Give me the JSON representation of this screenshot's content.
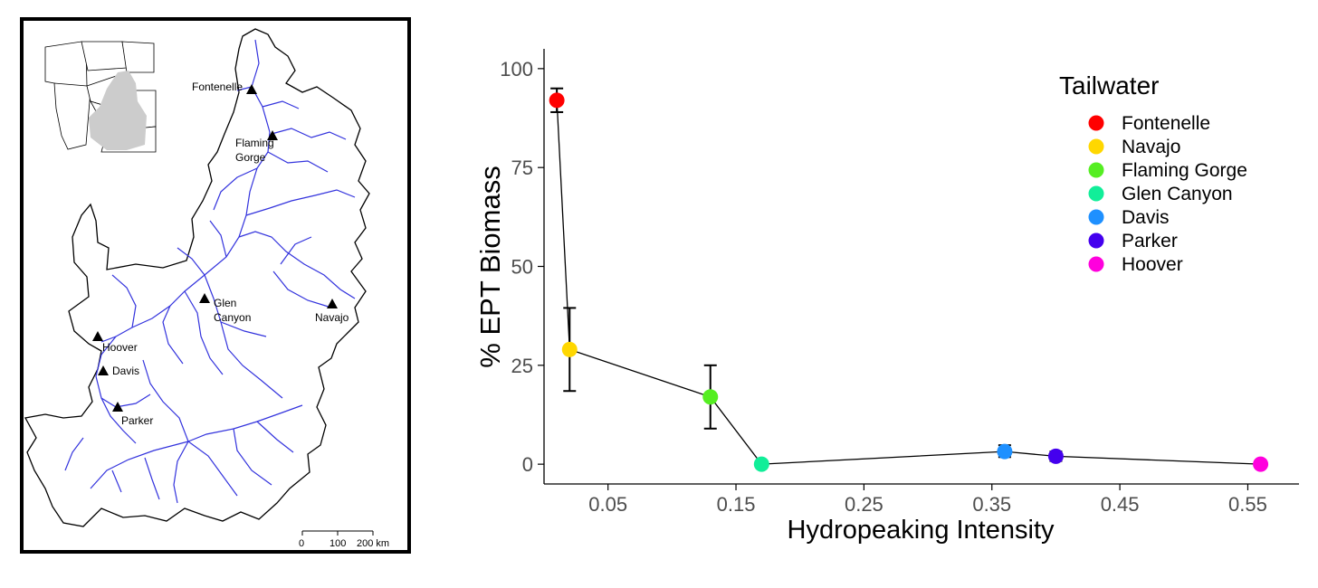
{
  "map": {
    "dams": [
      {
        "name": "Fontenelle",
        "label_lines": [
          "Fontenelle"
        ]
      },
      {
        "name": "Flaming Gorge",
        "label_lines": [
          "Flaming",
          "Gorge"
        ]
      },
      {
        "name": "Glen Canyon",
        "label_lines": [
          "Glen",
          "Canyon"
        ]
      },
      {
        "name": "Navajo",
        "label_lines": [
          "Navajo"
        ]
      },
      {
        "name": "Hoover",
        "label_lines": [
          "Hoover"
        ]
      },
      {
        "name": "Davis",
        "label_lines": [
          "Davis"
        ]
      },
      {
        "name": "Parker",
        "label_lines": [
          "Parker"
        ]
      }
    ],
    "scale_bar": {
      "ticks": [
        "0",
        "100",
        "200 km"
      ]
    },
    "colors": {
      "rivers": "#3333dd",
      "inset_basin": "#cccccc",
      "frame": "#000000"
    }
  },
  "chart_data": {
    "type": "scatter",
    "connected": true,
    "xlabel": "Hydropeaking Intensity",
    "ylabel": "% EPT Biomass",
    "xlim": [
      0,
      0.59
    ],
    "ylim": [
      -5,
      105
    ],
    "xticks": [
      0.05,
      0.15,
      0.25,
      0.35,
      0.45,
      0.55
    ],
    "xtick_labels": [
      "0.05",
      "0.15",
      "0.25",
      "0.35",
      "0.45",
      "0.55"
    ],
    "yticks": [
      0,
      25,
      50,
      75,
      100
    ],
    "ytick_labels": [
      "0",
      "25",
      "50",
      "75",
      "100"
    ],
    "grid": false,
    "legend": {
      "title": "Tailwater",
      "position": "top-right"
    },
    "points": [
      {
        "name": "Fontenelle",
        "x": 0.01,
        "y": 92,
        "ylo": 89,
        "yhi": 95,
        "color": "#ff0000"
      },
      {
        "name": "Navajo",
        "x": 0.02,
        "y": 29,
        "ylo": 18.5,
        "yhi": 39.5,
        "color": "#ffd700"
      },
      {
        "name": "Flaming Gorge",
        "x": 0.13,
        "y": 17,
        "ylo": 9,
        "yhi": 25,
        "color": "#55ee22"
      },
      {
        "name": "Glen Canyon",
        "x": 0.17,
        "y": 0,
        "ylo": 0,
        "yhi": 0,
        "color": "#11ee99"
      },
      {
        "name": "Davis",
        "x": 0.36,
        "y": 3.2,
        "ylo": 1.8,
        "yhi": 4.8,
        "color": "#1e90ff"
      },
      {
        "name": "Parker",
        "x": 0.4,
        "y": 2,
        "ylo": 0.8,
        "yhi": 3.2,
        "color": "#4400ee"
      },
      {
        "name": "Hoover",
        "x": 0.56,
        "y": 0,
        "ylo": 0,
        "yhi": 0,
        "color": "#ff00dd"
      }
    ]
  }
}
